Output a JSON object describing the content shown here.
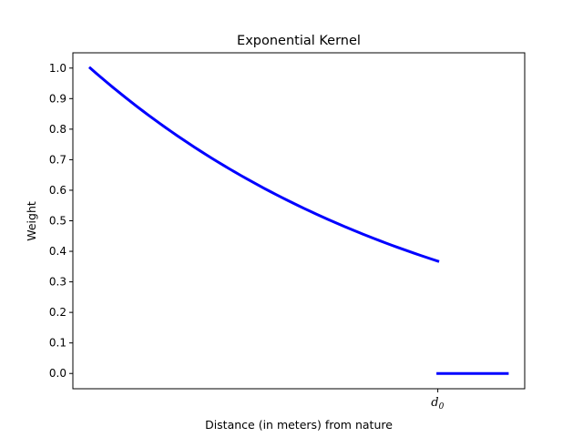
{
  "chart_data": {
    "type": "line",
    "title": "Exponential Kernel",
    "xlabel": "Distance (in meters) from nature",
    "ylabel": "Weight",
    "color": "#0000ff",
    "grid": false,
    "legend": "none",
    "xlim": [
      -0.05,
      1.25
    ],
    "ylim": [
      -0.05,
      1.05
    ],
    "y_ticks": [
      0.0,
      0.1,
      0.2,
      0.3,
      0.4,
      0.5,
      0.6,
      0.7,
      0.8,
      0.9,
      1.0
    ],
    "y_tick_labels": [
      "0.0",
      "0.1",
      "0.2",
      "0.3",
      "0.4",
      "0.5",
      "0.6",
      "0.7",
      "0.8",
      "0.9",
      "1.0"
    ],
    "x_ticks": [
      1.0
    ],
    "x_tick_label_main": "d",
    "x_tick_label_sub": "0",
    "series": [
      {
        "x": [
          0,
          0.1,
          0.2,
          0.3,
          0.4,
          0.5,
          0.6,
          0.7,
          0.8,
          0.9,
          1.0
        ],
        "y": [
          1.0,
          0.905,
          0.819,
          0.741,
          0.67,
          0.607,
          0.549,
          0.497,
          0.449,
          0.407,
          0.368
        ]
      },
      {
        "x": [
          1.0,
          1.2
        ],
        "y": [
          0.0,
          0.0
        ]
      }
    ]
  }
}
